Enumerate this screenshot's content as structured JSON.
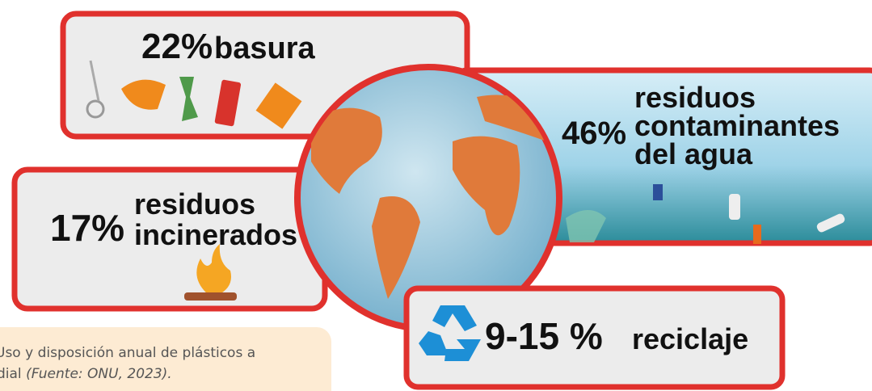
{
  "panels": {
    "basura": {
      "percent": "22%",
      "label": "basura"
    },
    "agua": {
      "percent": "46%",
      "lines": [
        "residuos",
        "contaminantes",
        "del agua"
      ]
    },
    "incinerados": {
      "percent": "17%",
      "lines": [
        "residuos",
        "incinerados"
      ]
    },
    "reciclaje": {
      "percent": "9-15 %",
      "label": "reciclaje"
    }
  },
  "caption": {
    "line1": "Uso y disposición anual de plásticos a",
    "line2": "dial",
    "source": "(Fuente: ONU, 2023)."
  }
}
